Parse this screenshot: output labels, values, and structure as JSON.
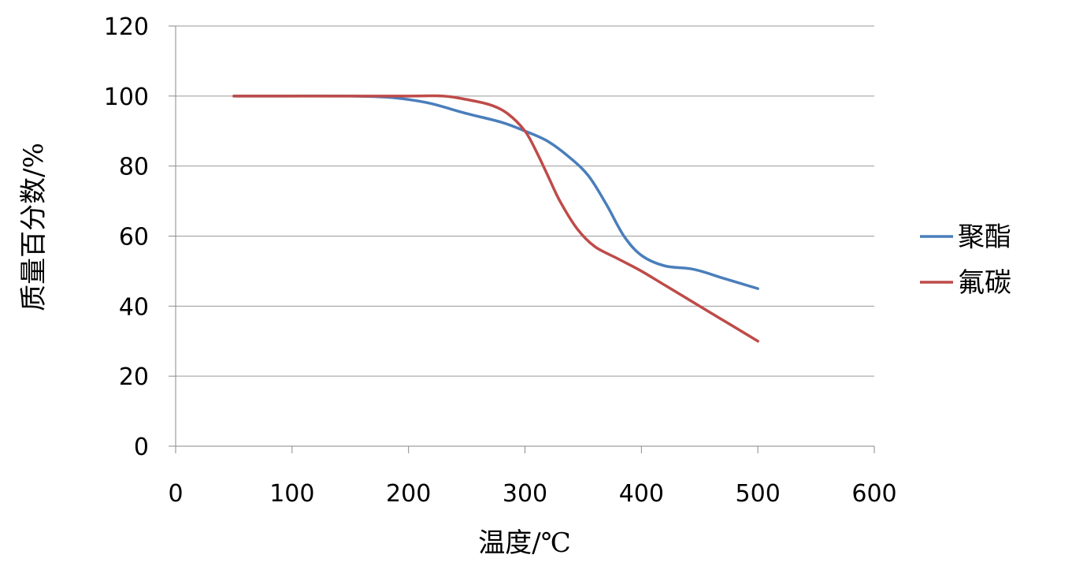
{
  "chart_data": {
    "type": "line",
    "title": "",
    "xlabel": "温度/℃",
    "ylabel": "质量百分数/%",
    "xlim": [
      0,
      600
    ],
    "ylim": [
      0,
      120
    ],
    "x_ticks": [
      0,
      100,
      200,
      300,
      400,
      500,
      600
    ],
    "y_ticks": [
      0,
      20,
      40,
      60,
      80,
      100,
      120
    ],
    "x_tick_labels": [
      "0",
      "100",
      "200",
      "300",
      "400",
      "500",
      "600"
    ],
    "y_tick_labels": [
      "0",
      "20",
      "40",
      "60",
      "80",
      "100",
      "120"
    ],
    "grid": "horizontal",
    "legend_position": "right",
    "series": [
      {
        "name": "聚酯",
        "color": "#4a7ebb",
        "points": [
          [
            50,
            100
          ],
          [
            100,
            100
          ],
          [
            150,
            100
          ],
          [
            180,
            99.7
          ],
          [
            200,
            99
          ],
          [
            220,
            97.8
          ],
          [
            250,
            95
          ],
          [
            280,
            92.5
          ],
          [
            300,
            90
          ],
          [
            320,
            87
          ],
          [
            340,
            82
          ],
          [
            355,
            77
          ],
          [
            370,
            69
          ],
          [
            385,
            60
          ],
          [
            400,
            54.5
          ],
          [
            420,
            51.5
          ],
          [
            445,
            50.5
          ],
          [
            470,
            48
          ],
          [
            500,
            45
          ]
        ]
      },
      {
        "name": "氟碳",
        "color": "#be4b48",
        "points": [
          [
            50,
            100
          ],
          [
            100,
            100
          ],
          [
            150,
            100
          ],
          [
            200,
            100
          ],
          [
            230,
            100
          ],
          [
            250,
            99
          ],
          [
            270,
            97.5
          ],
          [
            285,
            95
          ],
          [
            300,
            90
          ],
          [
            310,
            84
          ],
          [
            320,
            77
          ],
          [
            330,
            70
          ],
          [
            345,
            62
          ],
          [
            360,
            57
          ],
          [
            380,
            53.5
          ],
          [
            400,
            50
          ],
          [
            420,
            46
          ],
          [
            450,
            40
          ],
          [
            475,
            35
          ],
          [
            500,
            30
          ]
        ]
      }
    ]
  }
}
